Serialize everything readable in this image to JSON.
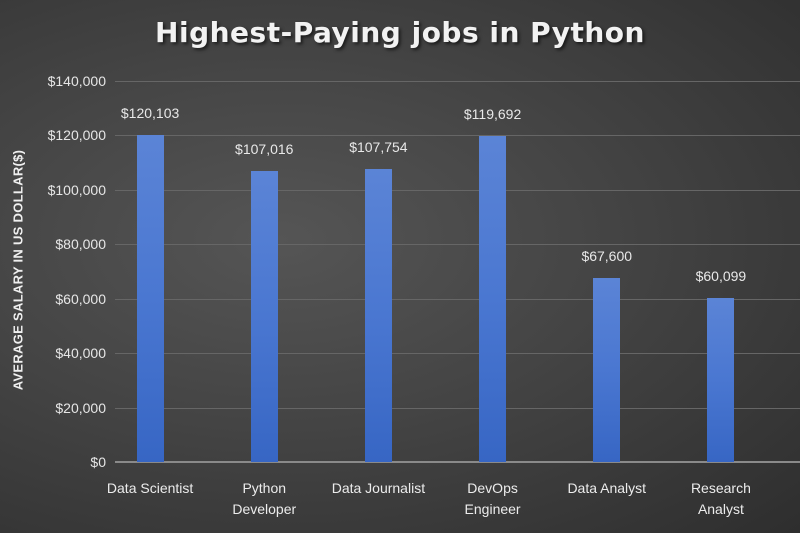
{
  "chart_data": {
    "type": "bar",
    "title": "Highest-Paying  jobs  in  Python",
    "xlabel": "",
    "ylabel": "AVERAGE SALARY IN US DOLLAR($)",
    "categories": [
      "Data Scientist",
      "Python Developer",
      "Data Journalist",
      "DevOps Engineer",
      "Data Analyst",
      "Research Analyst"
    ],
    "category_lines": [
      [
        "Data Scientist"
      ],
      [
        "Python",
        "Developer"
      ],
      [
        "Data Journalist"
      ],
      [
        "DevOps",
        "Engineer"
      ],
      [
        "Data Analyst"
      ],
      [
        "Research",
        "Analyst"
      ]
    ],
    "values": [
      120103,
      107016,
      107754,
      119692,
      67600,
      60099
    ],
    "data_labels": [
      "$120,103",
      "$107,016",
      "$107,754",
      "$119,692",
      "$67,600",
      "$60,099"
    ],
    "ylim": [
      0,
      140000
    ],
    "yticks": [
      0,
      20000,
      40000,
      60000,
      80000,
      100000,
      120000,
      140000
    ],
    "ytick_labels": [
      "$0",
      "$20,000",
      "$40,000",
      "$60,000",
      "$80,000",
      "$100,000",
      "$120,000",
      "$140,000"
    ],
    "grid": true,
    "legend": null,
    "bar_color": "#4a77d1",
    "background": "#444444"
  }
}
